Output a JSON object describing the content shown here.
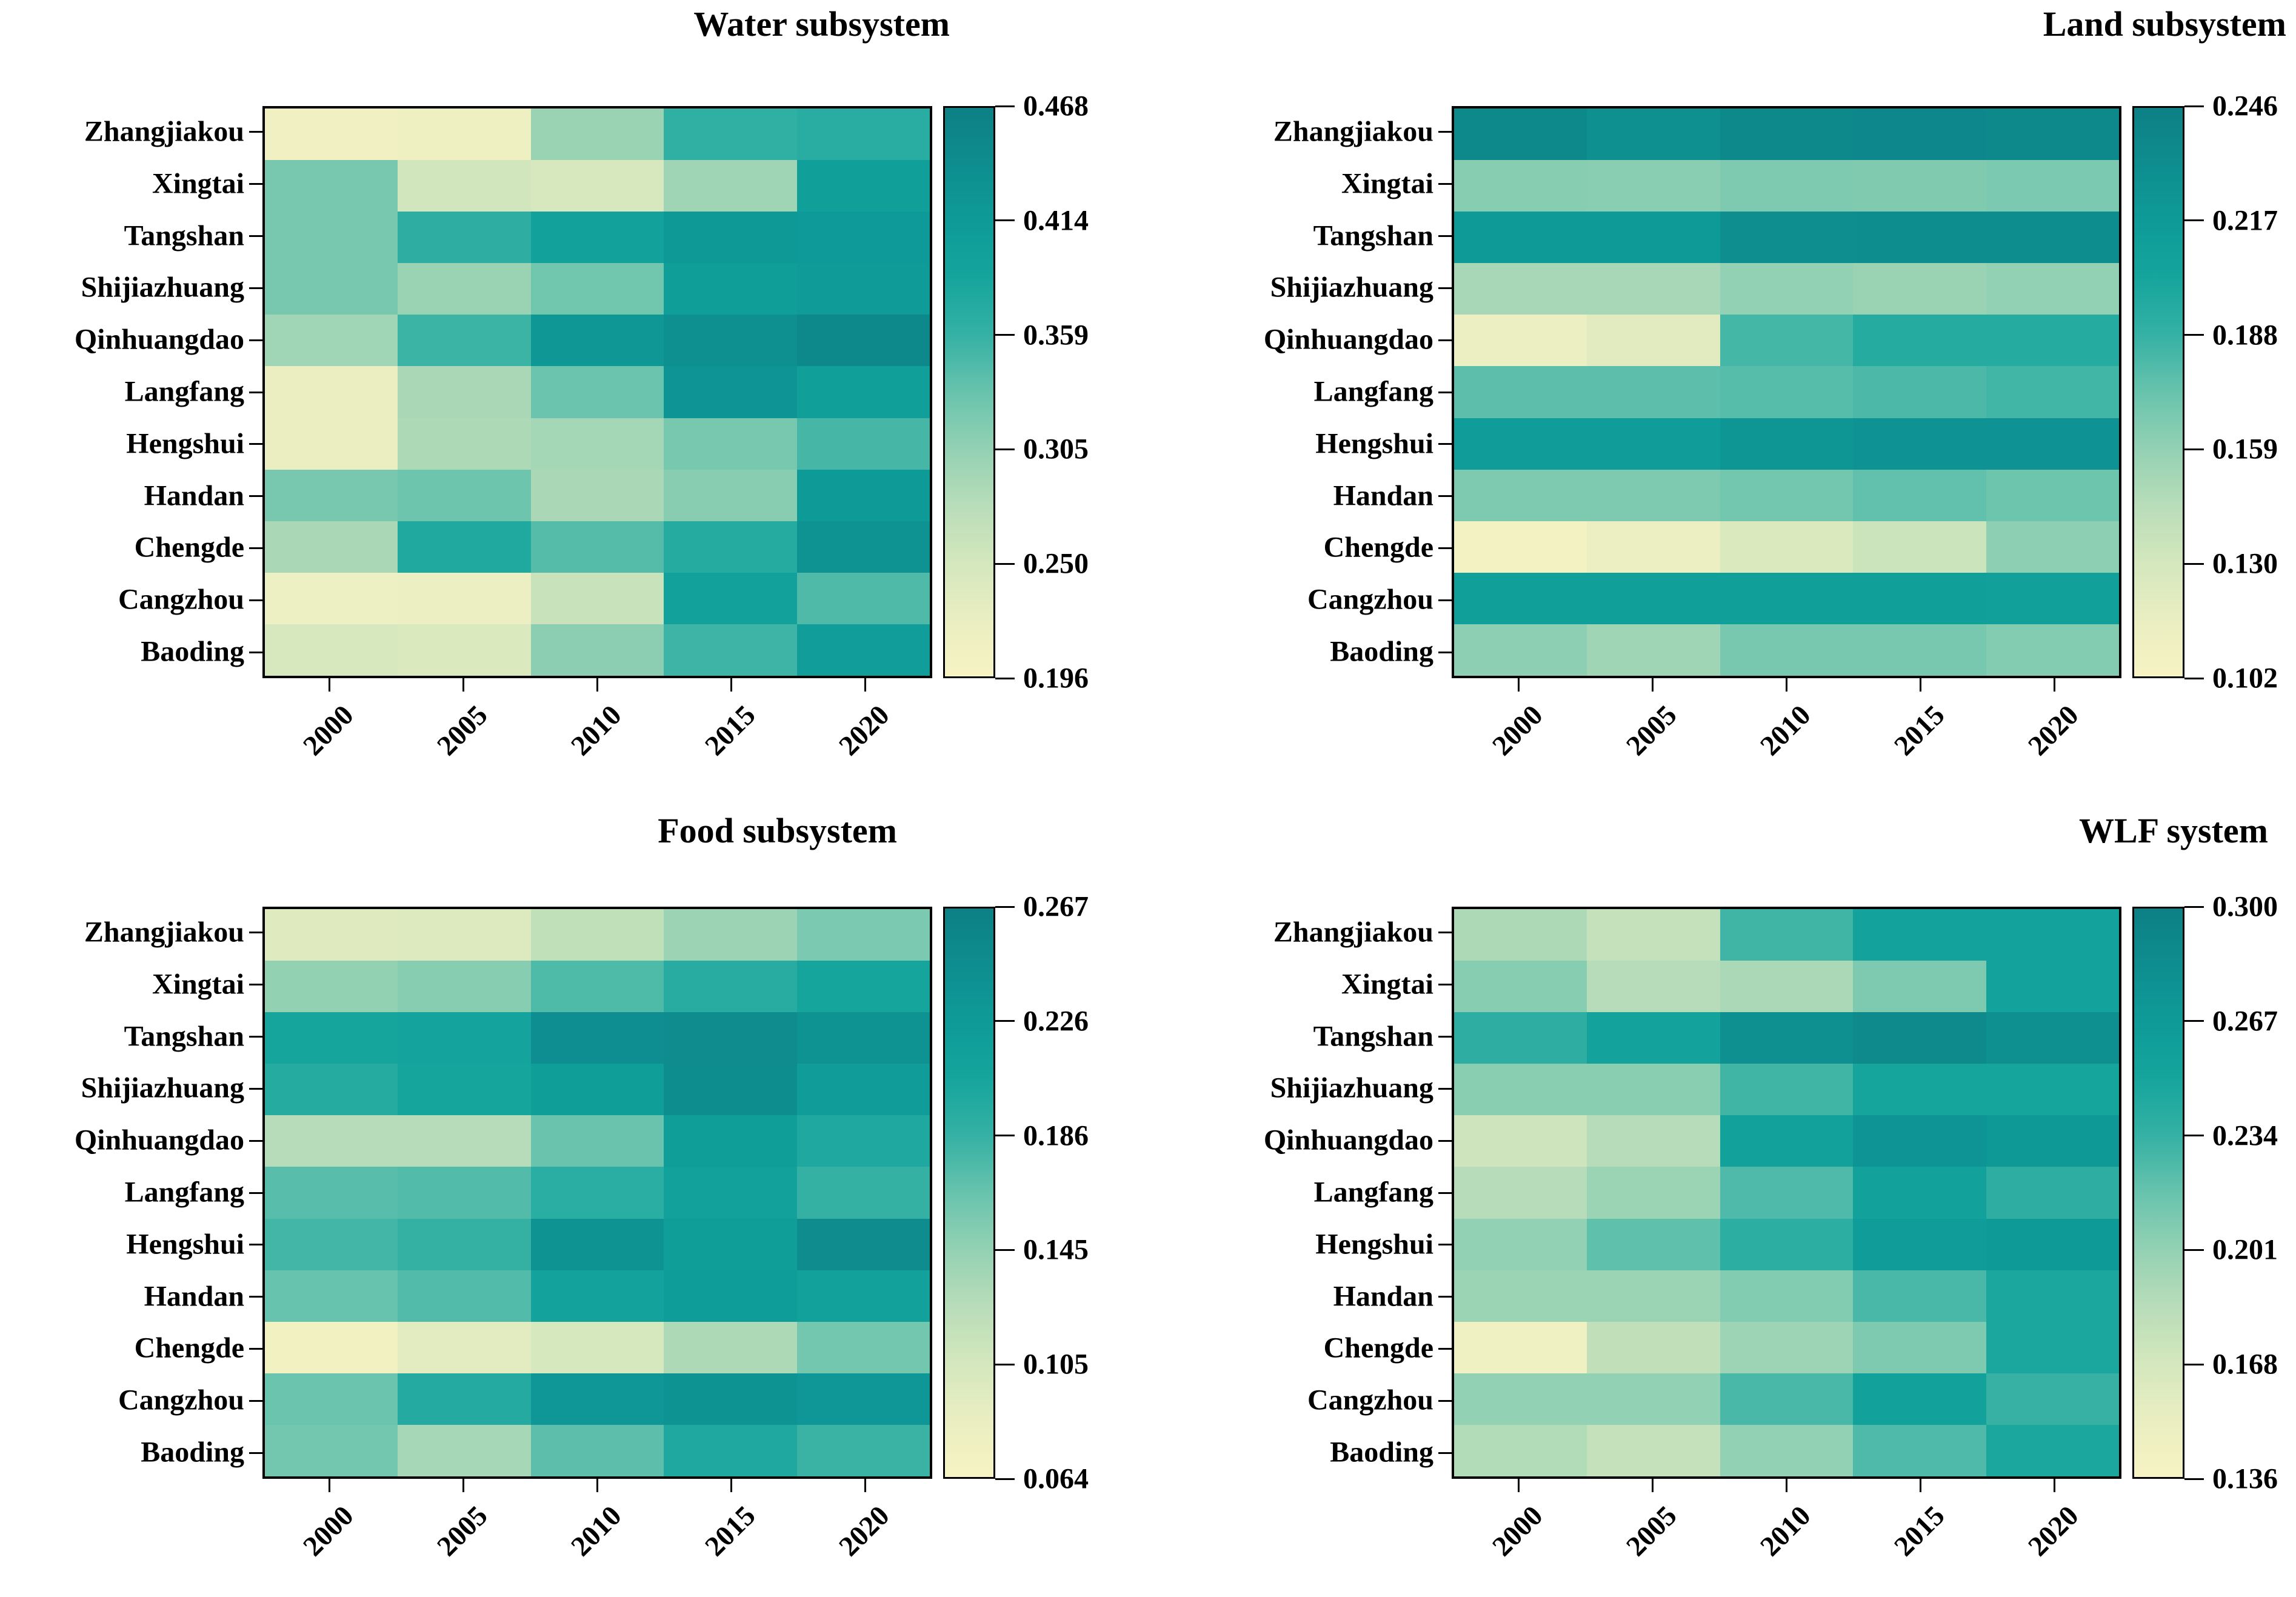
{
  "page": {
    "background": "#ffffff"
  },
  "palette_stops": [
    {
      "t": 0.0,
      "color": "#f7f3c3"
    },
    {
      "t": 0.1,
      "color": "#e9eec1"
    },
    {
      "t": 0.2,
      "color": "#d4e7bd"
    },
    {
      "t": 0.3,
      "color": "#b8ddb9"
    },
    {
      "t": 0.4,
      "color": "#93d1b3"
    },
    {
      "t": 0.5,
      "color": "#68c3ad"
    },
    {
      "t": 0.6,
      "color": "#35b1a4"
    },
    {
      "t": 0.7,
      "color": "#16a59d"
    },
    {
      "t": 0.8,
      "color": "#0e9b98"
    },
    {
      "t": 0.9,
      "color": "#0e8d8f"
    },
    {
      "t": 1.0,
      "color": "#0c8085"
    }
  ],
  "chart_data": [
    {
      "id": "water",
      "type": "heatmap",
      "title": "Water subsystem",
      "rows": [
        "Zhangjiakou",
        "Xingtai",
        "Tangshan",
        "Shijiazhuang",
        "Qinhuangdao",
        "Langfang",
        "Hengshui",
        "Handan",
        "Chengde",
        "Cangzhou",
        "Baoding"
      ],
      "columns": [
        "2000",
        "2005",
        "2010",
        "2015",
        "2020"
      ],
      "vmin": 0.196,
      "vmax": 0.468,
      "colorbar_ticks_top_to_bottom": [
        "0.468",
        "0.414",
        "0.359",
        "0.305",
        "0.250",
        "0.196"
      ],
      "values": [
        [
          0.21,
          0.212,
          0.3,
          0.364,
          0.37
        ],
        [
          0.322,
          0.252,
          0.247,
          0.296,
          0.403
        ],
        [
          0.322,
          0.365,
          0.396,
          0.42,
          0.415
        ],
        [
          0.322,
          0.3,
          0.326,
          0.406,
          0.41
        ],
        [
          0.295,
          0.356,
          0.422,
          0.435,
          0.452
        ],
        [
          0.222,
          0.288,
          0.33,
          0.427,
          0.404
        ],
        [
          0.222,
          0.286,
          0.292,
          0.322,
          0.35
        ],
        [
          0.322,
          0.328,
          0.288,
          0.312,
          0.414
        ],
        [
          0.288,
          0.378,
          0.342,
          0.372,
          0.432
        ],
        [
          0.215,
          0.22,
          0.262,
          0.398,
          0.345
        ],
        [
          0.247,
          0.242,
          0.31,
          0.355,
          0.405
        ]
      ]
    },
    {
      "id": "land",
      "type": "heatmap",
      "title": "Land subsystem",
      "rows": [
        "Zhangjiakou",
        "Xingtai",
        "Tangshan",
        "Shijiazhuang",
        "Qinhuangdao",
        "Langfang",
        "Hengshui",
        "Handan",
        "Chengde",
        "Cangzhou",
        "Baoding"
      ],
      "columns": [
        "2000",
        "2005",
        "2010",
        "2015",
        "2020"
      ],
      "vmin": 0.102,
      "vmax": 0.246,
      "colorbar_ticks_top_to_bottom": [
        "0.246",
        "0.217",
        "0.188",
        "0.159",
        "0.130",
        "0.102"
      ],
      "values": [
        [
          0.236,
          0.23,
          0.236,
          0.238,
          0.236
        ],
        [
          0.164,
          0.163,
          0.167,
          0.166,
          0.168
        ],
        [
          0.217,
          0.217,
          0.231,
          0.232,
          0.232
        ],
        [
          0.152,
          0.152,
          0.16,
          0.157,
          0.16
        ],
        [
          0.113,
          0.122,
          0.184,
          0.196,
          0.196
        ],
        [
          0.177,
          0.177,
          0.179,
          0.182,
          0.185
        ],
        [
          0.214,
          0.214,
          0.222,
          0.226,
          0.226
        ],
        [
          0.167,
          0.167,
          0.17,
          0.176,
          0.172
        ],
        [
          0.106,
          0.114,
          0.126,
          0.135,
          0.162
        ],
        [
          0.211,
          0.211,
          0.211,
          0.211,
          0.21
        ],
        [
          0.162,
          0.155,
          0.169,
          0.169,
          0.165
        ]
      ]
    },
    {
      "id": "food",
      "type": "heatmap",
      "title": "Food subsystem",
      "rows": [
        "Zhangjiakou",
        "Xingtai",
        "Tangshan",
        "Shijiazhuang",
        "Qinhuangdao",
        "Langfang",
        "Hengshui",
        "Handan",
        "Chengde",
        "Cangzhou",
        "Baoding"
      ],
      "columns": [
        "2000",
        "2005",
        "2010",
        "2015",
        "2020"
      ],
      "vmin": 0.064,
      "vmax": 0.267,
      "colorbar_ticks_top_to_bottom": [
        "0.267",
        "0.226",
        "0.186",
        "0.145",
        "0.105",
        "0.064"
      ],
      "values": [
        [
          0.094,
          0.096,
          0.119,
          0.141,
          0.157
        ],
        [
          0.145,
          0.151,
          0.176,
          0.194,
          0.206
        ],
        [
          0.206,
          0.208,
          0.245,
          0.249,
          0.239
        ],
        [
          0.196,
          0.206,
          0.221,
          0.247,
          0.222
        ],
        [
          0.126,
          0.126,
          0.165,
          0.221,
          0.201
        ],
        [
          0.172,
          0.174,
          0.193,
          0.213,
          0.186
        ],
        [
          0.18,
          0.186,
          0.24,
          0.221,
          0.248
        ],
        [
          0.166,
          0.174,
          0.211,
          0.223,
          0.213
        ],
        [
          0.072,
          0.09,
          0.103,
          0.131,
          0.16
        ],
        [
          0.164,
          0.197,
          0.232,
          0.238,
          0.232
        ],
        [
          0.16,
          0.135,
          0.17,
          0.201,
          0.184
        ]
      ]
    },
    {
      "id": "wlf",
      "type": "heatmap",
      "title": "WLF system",
      "rows": [
        "Zhangjiakou",
        "Xingtai",
        "Tangshan",
        "Shijiazhuang",
        "Qinhuangdao",
        "Langfang",
        "Hengshui",
        "Handan",
        "Chengde",
        "Cangzhou",
        "Baoding"
      ],
      "columns": [
        "2000",
        "2005",
        "2010",
        "2015",
        "2020"
      ],
      "vmin": 0.136,
      "vmax": 0.3,
      "colorbar_ticks_top_to_bottom": [
        "0.300",
        "0.267",
        "0.234",
        "0.201",
        "0.168",
        "0.136"
      ],
      "values": [
        [
          0.19,
          0.178,
          0.231,
          0.254,
          0.254
        ],
        [
          0.206,
          0.186,
          0.191,
          0.21,
          0.254
        ],
        [
          0.238,
          0.254,
          0.28,
          0.287,
          0.28
        ],
        [
          0.205,
          0.205,
          0.231,
          0.251,
          0.251
        ],
        [
          0.173,
          0.186,
          0.256,
          0.275,
          0.27
        ],
        [
          0.186,
          0.198,
          0.226,
          0.256,
          0.238
        ],
        [
          0.202,
          0.221,
          0.239,
          0.264,
          0.267
        ],
        [
          0.198,
          0.198,
          0.208,
          0.228,
          0.248
        ],
        [
          0.144,
          0.18,
          0.197,
          0.21,
          0.248
        ],
        [
          0.202,
          0.202,
          0.228,
          0.256,
          0.234
        ],
        [
          0.188,
          0.178,
          0.202,
          0.226,
          0.248
        ]
      ]
    }
  ]
}
